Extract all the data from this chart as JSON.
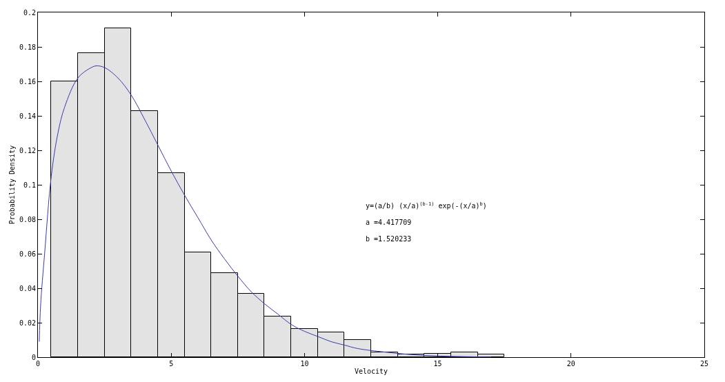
{
  "chart_data": {
    "type": "histogram",
    "xlabel": "Velocity",
    "ylabel": "Probability Density",
    "bins": [
      0.5,
      1.5,
      2.5,
      3.5,
      4.5,
      5.5,
      6.5,
      7.5,
      8.5,
      9.5,
      10.5,
      11.5,
      12.5,
      13.5,
      14.5,
      15.5,
      16.5,
      17.5
    ],
    "values": [
      0.16,
      0.1765,
      0.191,
      0.143,
      0.107,
      0.061,
      0.049,
      0.037,
      0.0235,
      0.0165,
      0.0145,
      0.01,
      0.003,
      0.0015,
      0.002,
      0.003,
      0.0015
    ],
    "color": "#e3e3e3",
    "series": [
      {
        "type": "line",
        "color": "#3a3ab0",
        "x": [
          0.05,
          0.1,
          0.25,
          0.5,
          0.75,
          1,
          1.5,
          2,
          2.2,
          2.5,
          3,
          3.5,
          4,
          4.5,
          5,
          5.5,
          6,
          6.5,
          7,
          7.5,
          8,
          8.5,
          9,
          9.5,
          10,
          10.5,
          11,
          11.5,
          12,
          13,
          14,
          15,
          16,
          17
        ],
        "values": [
          0.009,
          0.03,
          0.06,
          0.105,
          0.13,
          0.145,
          0.162,
          0.168,
          0.169,
          0.168,
          0.162,
          0.152,
          0.138,
          0.123,
          0.108,
          0.094,
          0.081,
          0.068,
          0.057,
          0.047,
          0.038,
          0.031,
          0.025,
          0.019,
          0.015,
          0.012,
          0.009,
          0.007,
          0.005,
          0.003,
          0.0015,
          0.0007,
          0.0003,
          0.0001
        ]
      }
    ],
    "annotations": [
      "y=(a/b) (x/a)$^{(b-1)}$ exp(-(x/a)$^{b}$)",
      "a =4.417709",
      "b =1.520233"
    ],
    "xlim": [
      0,
      25
    ],
    "xticks": [
      0,
      5,
      10,
      15,
      20,
      25
    ],
    "ylim": [
      0,
      0.2
    ],
    "yticks": [
      0,
      0.02,
      0.04,
      0.06,
      0.08,
      0.1,
      0.12,
      0.14,
      0.16,
      0.18,
      0.2
    ]
  }
}
